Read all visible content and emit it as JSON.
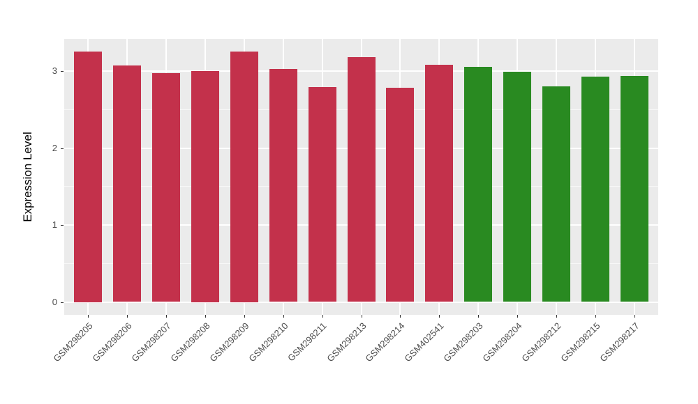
{
  "chart_data": {
    "type": "bar",
    "title": "",
    "xlabel": "",
    "ylabel": "Expression Level",
    "ylim": [
      0,
      3.42
    ],
    "yticks": [
      0,
      1,
      2,
      3
    ],
    "yticks_minor": [
      0.5,
      1.5,
      2.5
    ],
    "legend": "none",
    "grid": "ggplot theme_gray: white major/minor horizontal gridlines and white vertical gridlines at category centers on gray panel",
    "categories": [
      "GSM298205",
      "GSM298206",
      "GSM298207",
      "GSM298208",
      "GSM298209",
      "GSM298210",
      "GSM298211",
      "GSM298213",
      "GSM298214",
      "GSM402541",
      "GSM298203",
      "GSM298204",
      "GSM298212",
      "GSM298215",
      "GSM298217"
    ],
    "values": [
      3.25,
      3.07,
      2.97,
      3.0,
      3.25,
      3.03,
      2.79,
      3.18,
      2.78,
      3.08,
      3.05,
      2.99,
      2.8,
      2.93,
      2.94
    ],
    "groups": [
      "red",
      "red",
      "red",
      "red",
      "red",
      "red",
      "red",
      "red",
      "red",
      "red",
      "green",
      "green",
      "green",
      "green",
      "green"
    ],
    "colors": {
      "red": "#C3314B",
      "green": "#298A21",
      "panel_bg": "#EBEBEB",
      "grid_major": "#FFFFFF",
      "grid_minor": "rgba(255,255,255,0.65)",
      "axis_text": "#4D4D4D",
      "axis_title": "#000000",
      "tick_mark": "#333333"
    }
  }
}
